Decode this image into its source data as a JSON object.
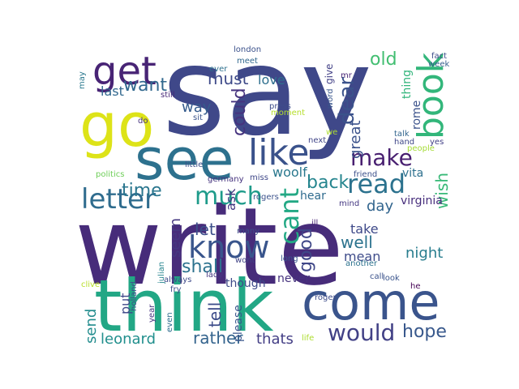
{
  "word_cloud": {
    "words": [
      {
        "text": "say",
        "color": "#3f4889"
      },
      {
        "text": "write",
        "color": "#472c7a"
      },
      {
        "text": "think",
        "color": "#22a785"
      },
      {
        "text": "come",
        "color": "#3a548c"
      },
      {
        "text": "see",
        "color": "#2d718e"
      },
      {
        "text": "like",
        "color": "#3a528b"
      },
      {
        "text": "go",
        "color": "#dde318"
      },
      {
        "text": "get",
        "color": "#482475"
      },
      {
        "text": "book",
        "color": "#32b67a"
      },
      {
        "text": "letter",
        "color": "#2f6c8e"
      },
      {
        "text": "know",
        "color": "#39558c"
      },
      {
        "text": "read",
        "color": "#2c728e"
      },
      {
        "text": "cant",
        "color": "#22a884"
      },
      {
        "text": "much",
        "color": "#1e9b8a"
      },
      {
        "text": "make",
        "color": "#481f70"
      },
      {
        "text": "would",
        "color": "#424186"
      },
      {
        "text": "dear",
        "color": "#3b528b"
      },
      {
        "text": "want",
        "color": "#31688e"
      },
      {
        "text": "time",
        "color": "#2a768e"
      },
      {
        "text": "hope",
        "color": "#38588c"
      },
      {
        "text": "back",
        "color": "#25858e"
      },
      {
        "text": "good",
        "color": "#3f4788"
      },
      {
        "text": "shall",
        "color": "#2c728e"
      },
      {
        "text": "old",
        "color": "#42be71"
      },
      {
        "text": "must",
        "color": "#3e4a89"
      },
      {
        "text": "could",
        "color": "#46337e"
      },
      {
        "text": "rather",
        "color": "#33638d"
      },
      {
        "text": "leonard",
        "color": "#218f8d"
      },
      {
        "text": "tell",
        "color": "#3d4d8a"
      },
      {
        "text": "send",
        "color": "#228c8d"
      },
      {
        "text": "well",
        "color": "#2c738e"
      },
      {
        "text": "night",
        "color": "#287d8e"
      },
      {
        "text": "wish",
        "color": "#38b977"
      },
      {
        "text": "seem",
        "color": "#453781"
      },
      {
        "text": "let",
        "color": "#3c4f8a"
      },
      {
        "text": "day",
        "color": "#32658e"
      },
      {
        "text": "thats",
        "color": "#433e85"
      },
      {
        "text": "love",
        "color": "#2e6f8e"
      },
      {
        "text": "way",
        "color": "#365c8d"
      },
      {
        "text": "last",
        "color": "#31688e"
      },
      {
        "text": "great",
        "color": "#3b528b"
      },
      {
        "text": "take",
        "color": "#3e4989"
      },
      {
        "text": "mean",
        "color": "#3e4c8a"
      },
      {
        "text": "vita",
        "color": "#2d708e"
      },
      {
        "text": "put",
        "color": "#3f4889"
      },
      {
        "text": "woolf",
        "color": "#2a788e"
      },
      {
        "text": "hear",
        "color": "#2f6b8e"
      },
      {
        "text": "ask",
        "color": "#453882"
      },
      {
        "text": "please",
        "color": "#39568c"
      },
      {
        "text": "though",
        "color": "#3e4a89"
      },
      {
        "text": "never",
        "color": "#46327e"
      },
      {
        "text": "give",
        "color": "#424086"
      },
      {
        "text": "thing",
        "color": "#31b57b"
      },
      {
        "text": "rome",
        "color": "#3b528b"
      },
      {
        "text": "virginia",
        "color": "#472e7c"
      },
      {
        "text": "fry",
        "color": "#3c4f8a"
      },
      {
        "text": "london",
        "color": "#3b518b"
      },
      {
        "text": "meet",
        "color": "#31688e"
      },
      {
        "text": "ever",
        "color": "#2d708e"
      },
      {
        "text": "mr",
        "color": "#482475"
      },
      {
        "text": "word",
        "color": "#39568c"
      },
      {
        "text": "fact",
        "color": "#3d4d8a"
      },
      {
        "text": "week",
        "color": "#355f8d"
      },
      {
        "text": "may",
        "color": "#2a788e"
      },
      {
        "text": "still",
        "color": "#482878"
      },
      {
        "text": "press",
        "color": "#3e4c8a"
      },
      {
        "text": "moment",
        "color": "#b5de2b"
      },
      {
        "text": "sit",
        "color": "#3a548c"
      },
      {
        "text": "do",
        "color": "#46327e"
      },
      {
        "text": "talk",
        "color": "#32658e"
      },
      {
        "text": "hand",
        "color": "#3f4788"
      },
      {
        "text": "yes",
        "color": "#424086"
      },
      {
        "text": "people",
        "color": "#a5db36"
      },
      {
        "text": "politics",
        "color": "#6ece58"
      },
      {
        "text": "little",
        "color": "#3c4f8a"
      },
      {
        "text": "germany",
        "color": "#46337e"
      },
      {
        "text": "miss",
        "color": "#3f4788"
      },
      {
        "text": "friend",
        "color": "#3c508b"
      },
      {
        "text": "mind",
        "color": "#453882"
      },
      {
        "text": "rogers",
        "color": "#3b528b"
      },
      {
        "text": "ill",
        "color": "#482475"
      },
      {
        "text": "many",
        "color": "#3d4e8a"
      },
      {
        "text": "wont",
        "color": "#414487"
      },
      {
        "text": "long",
        "color": "#39558c"
      },
      {
        "text": "another",
        "color": "#2c728e"
      },
      {
        "text": "julian",
        "color": "#25848e"
      },
      {
        "text": "always",
        "color": "#3e4a89"
      },
      {
        "text": "lady",
        "color": "#453781"
      },
      {
        "text": "call",
        "color": "#3b528b"
      },
      {
        "text": "look",
        "color": "#3a548c"
      },
      {
        "text": "he",
        "color": "#440154"
      },
      {
        "text": "clive",
        "color": "#b8de29"
      },
      {
        "text": "holland",
        "color": "#3d4e8a"
      },
      {
        "text": "year",
        "color": "#46307e"
      },
      {
        "text": "even",
        "color": "#2e6d8e"
      },
      {
        "text": "roger",
        "color": "#3e4c8a"
      },
      {
        "text": "life",
        "color": "#addc30"
      },
      {
        "text": "next",
        "color": "#404588"
      },
      {
        "text": "we",
        "color": "#addc30"
      }
    ]
  }
}
